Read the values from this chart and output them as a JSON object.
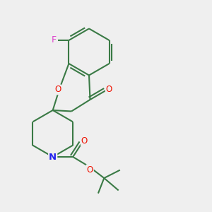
{
  "background_color": "#efefef",
  "bond_color": "#3a7a45",
  "bond_width": 1.5,
  "atom_colors": {
    "F": "#dd44cc",
    "O": "#ee1100",
    "N": "#2222ee",
    "C": "#3a7a45"
  },
  "fig_size": [
    3.0,
    3.0
  ],
  "dpi": 100,
  "xlim": [
    0,
    10
  ],
  "ylim": [
    0,
    10
  ]
}
